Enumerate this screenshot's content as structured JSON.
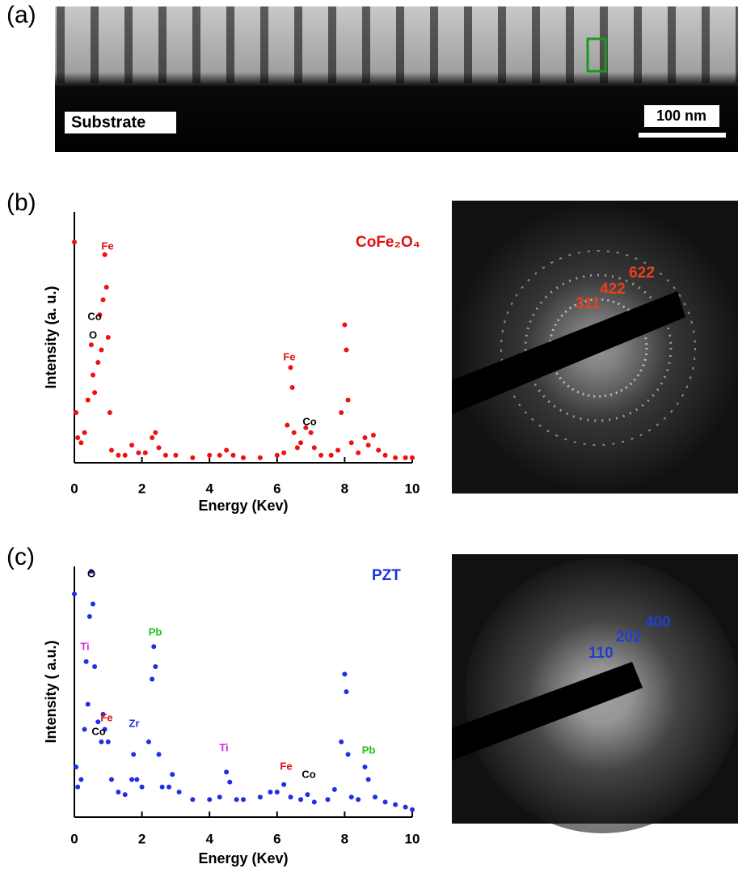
{
  "figure": {
    "panels": [
      "(a)",
      "(b)",
      "(c)"
    ],
    "image_labels": {
      "substrate": "Substrate",
      "scale_bar": "100 nm"
    },
    "diffraction": [
      {
        "labels": [
          "311",
          "422",
          "622"
        ],
        "color": "#e8401c"
      },
      {
        "labels": [
          "110",
          "202",
          "400"
        ],
        "color": "#1f3fd0"
      }
    ]
  },
  "chart_data": [
    {
      "type": "scatter",
      "title": "CoFe₂O₄",
      "title_color": "#e01010",
      "xlabel": "Energy (Kev)",
      "ylabel": "Intensity (a. u.)",
      "xlim": [
        0,
        10
      ],
      "ylim": [
        0,
        100
      ],
      "xticks": [
        0,
        2,
        4,
        6,
        8,
        10
      ],
      "annotations": [
        {
          "text": "Fe",
          "color": "#e01010"
        },
        {
          "text": "Co",
          "color": "#000000"
        },
        {
          "text": "O",
          "color": "#000000"
        },
        {
          "text": "Fe",
          "color": "#e01010"
        },
        {
          "text": "Co",
          "color": "#000000"
        }
      ],
      "series": [
        {
          "color": "#f01010",
          "x": [
            0,
            0.05,
            0.1,
            0.2,
            0.3,
            0.4,
            0.5,
            0.55,
            0.6,
            0.7,
            0.75,
            0.8,
            0.85,
            0.9,
            0.95,
            1.0,
            1.05,
            1.1,
            1.3,
            1.5,
            1.7,
            1.9,
            2.1,
            2.3,
            2.4,
            2.5,
            2.7,
            3.0,
            3.5,
            4.0,
            4.3,
            4.5,
            4.7,
            5.0,
            5.5,
            6.0,
            6.2,
            6.3,
            6.4,
            6.45,
            6.5,
            6.6,
            6.7,
            6.85,
            7.0,
            7.1,
            7.3,
            7.6,
            7.8,
            7.9,
            8.0,
            8.05,
            8.1,
            8.2,
            8.4,
            8.6,
            8.7,
            8.85,
            9.0,
            9.2,
            9.5,
            9.8,
            10
          ],
          "values": [
            88,
            20,
            10,
            8,
            12,
            25,
            47,
            35,
            28,
            40,
            59,
            45,
            65,
            83,
            70,
            50,
            20,
            5,
            3,
            3,
            7,
            4,
            4,
            10,
            12,
            6,
            3,
            3,
            2,
            3,
            3,
            5,
            3,
            2,
            2,
            3,
            4,
            15,
            38,
            30,
            12,
            6,
            8,
            14,
            12,
            6,
            3,
            3,
            5,
            20,
            55,
            45,
            25,
            8,
            4,
            10,
            7,
            11,
            5,
            3,
            2,
            2,
            2
          ]
        }
      ]
    },
    {
      "type": "scatter",
      "title": "PZT",
      "title_color": "#1f2fe0",
      "xlabel": "Energy (Kev)",
      "ylabel": "Intensity ( a.u.)",
      "xlim": [
        0,
        10
      ],
      "ylim": [
        0,
        100
      ],
      "xticks": [
        0,
        2,
        4,
        6,
        8,
        10
      ],
      "annotations": [
        {
          "text": "O",
          "color": "#000000"
        },
        {
          "text": "Ti",
          "color": "#e020e0"
        },
        {
          "text": "Pb",
          "color": "#20c020"
        },
        {
          "text": "Fe",
          "color": "#e01010"
        },
        {
          "text": "Co",
          "color": "#000000"
        },
        {
          "text": "Zr",
          "color": "#1f2fe0"
        },
        {
          "text": "Ti",
          "color": "#e020e0"
        },
        {
          "text": "Fe",
          "color": "#e01010"
        },
        {
          "text": "Co",
          "color": "#000000"
        },
        {
          "text": "Pb",
          "color": "#20c020"
        }
      ],
      "series": [
        {
          "color": "#1f2fe8",
          "x": [
            0,
            0.05,
            0.1,
            0.2,
            0.3,
            0.35,
            0.4,
            0.45,
            0.5,
            0.55,
            0.6,
            0.7,
            0.8,
            0.85,
            0.9,
            1.0,
            1.1,
            1.3,
            1.5,
            1.7,
            1.75,
            1.85,
            2.0,
            2.2,
            2.3,
            2.35,
            2.4,
            2.5,
            2.6,
            2.8,
            2.9,
            3.1,
            3.5,
            4.0,
            4.3,
            4.5,
            4.6,
            4.8,
            5.0,
            5.5,
            5.8,
            6.0,
            6.2,
            6.4,
            6.7,
            6.9,
            7.1,
            7.5,
            7.7,
            7.9,
            8.0,
            8.05,
            8.1,
            8.2,
            8.4,
            8.6,
            8.7,
            8.9,
            9.2,
            9.5,
            9.8,
            10
          ],
          "values": [
            89,
            20,
            12,
            15,
            35,
            62,
            45,
            80,
            98,
            85,
            60,
            38,
            30,
            41,
            35,
            30,
            15,
            10,
            9,
            15,
            25,
            15,
            12,
            30,
            55,
            68,
            60,
            25,
            12,
            12,
            17,
            10,
            7,
            7,
            8,
            18,
            14,
            7,
            7,
            8,
            10,
            10,
            13,
            8,
            7,
            9,
            6,
            7,
            11,
            30,
            57,
            50,
            25,
            8,
            7,
            20,
            15,
            8,
            6,
            5,
            4,
            3
          ]
        }
      ]
    }
  ]
}
